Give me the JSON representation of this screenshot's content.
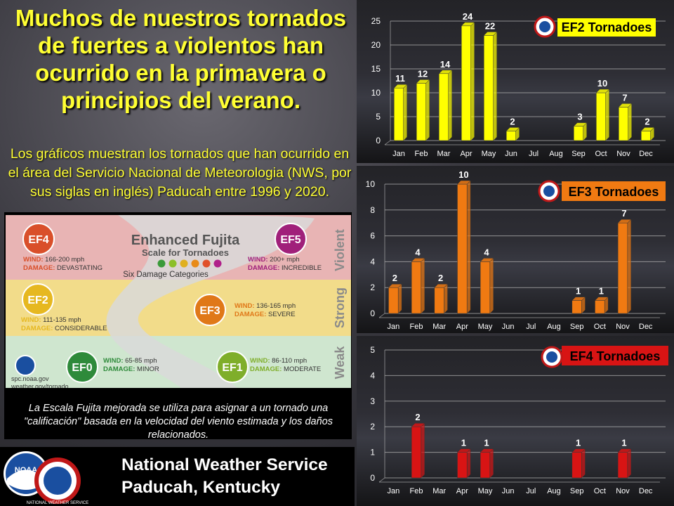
{
  "headline": "Muchos de nuestros tornados de fuertes a violentos han ocurrido en la primavera o principios del verano.",
  "subheadline": "Los gráficos muestran los tornados que han ocurrido en el área del Servicio Nacional de Meteorologia (NWS, por sus siglas en inglés) Paducah entre 1996 y 2020.",
  "fujita": {
    "title": "Enhanced Fujita",
    "subtitle": "Scale for Tornadoes",
    "categories_label": "Six Damage Categories",
    "dot_colors": [
      "#3a9a3a",
      "#8cbf2a",
      "#e0b020",
      "#e88a18",
      "#e0502a",
      "#b0208a"
    ],
    "bands": [
      "Violent",
      "Strong",
      "Weak"
    ],
    "items": [
      {
        "id": "EF4",
        "wind": "166-200 mph",
        "damage": "DEVASTATING",
        "color": "#d94f2a"
      },
      {
        "id": "EF5",
        "wind": "200+ mph",
        "damage": "INCREDIBLE",
        "color": "#a0207a"
      },
      {
        "id": "EF2",
        "wind": "111-135 mph",
        "damage": "CONSIDERABLE",
        "color": "#e6b820"
      },
      {
        "id": "EF3",
        "wind": "136-165 mph",
        "damage": "SEVERE",
        "color": "#e07818"
      },
      {
        "id": "EF0",
        "wind": "65-85 mph",
        "damage": "MINOR",
        "color": "#2e8a3a"
      },
      {
        "id": "EF1",
        "wind": "86-110 mph",
        "damage": "MODERATE",
        "color": "#7fae2a"
      }
    ],
    "wind_label": "WIND:",
    "damage_label": "DAMAGE:",
    "logo_lines": [
      "spc.noaa.gov",
      "weather.gov/tornado"
    ]
  },
  "caption": "La Escala Fujita mejorada se utiliza para asignar a un tornado una \"calificación\" basada en la velocidad del viento estimada y los daños relacionados.",
  "footer": {
    "line1": "National Weather Service",
    "line2": "Paducah, Kentucky",
    "noaa_logo_text": "NOAA",
    "nws_logo_text": "NATIONAL WEATHER SERVICE"
  },
  "chart_data": [
    {
      "type": "bar",
      "title": "EF2 Tornadoes",
      "categories": [
        "Jan",
        "Feb",
        "Mar",
        "Apr",
        "May",
        "Jun",
        "Jul",
        "Aug",
        "Sep",
        "Oct",
        "Nov",
        "Dec"
      ],
      "values": [
        11,
        12,
        14,
        24,
        22,
        2,
        0,
        0,
        3,
        10,
        7,
        2
      ],
      "ylim": [
        0,
        25
      ],
      "yticks": [
        0,
        5,
        10,
        15,
        20,
        25
      ],
      "bar_color": "#ffff00",
      "label_bg": "#ffff00",
      "label_color": "#000000"
    },
    {
      "type": "bar",
      "title": "EF3 Tornadoes",
      "categories": [
        "Jan",
        "Feb",
        "Mar",
        "Apr",
        "May",
        "Jun",
        "Jul",
        "Aug",
        "Sep",
        "Oct",
        "Nov",
        "Dec"
      ],
      "values": [
        2,
        4,
        2,
        10,
        4,
        0,
        0,
        0,
        1,
        1,
        7,
        0
      ],
      "ylim": [
        0,
        10
      ],
      "yticks": [
        0,
        2,
        4,
        6,
        8,
        10
      ],
      "bar_color": "#f07a12",
      "label_bg": "#f07a12",
      "label_color": "#000000"
    },
    {
      "type": "bar",
      "title": "EF4 Tornadoes",
      "categories": [
        "Jan",
        "Feb",
        "Mar",
        "Apr",
        "May",
        "Jun",
        "Jul",
        "Aug",
        "Sep",
        "Oct",
        "Nov",
        "Dec"
      ],
      "values": [
        0,
        2,
        0,
        1,
        1,
        0,
        0,
        0,
        1,
        0,
        1,
        0
      ],
      "ylim": [
        0,
        5
      ],
      "yticks": [
        0,
        1,
        2,
        3,
        4,
        5
      ],
      "bar_color": "#d81414",
      "label_bg": "#d81414",
      "label_color": "#000000"
    }
  ]
}
